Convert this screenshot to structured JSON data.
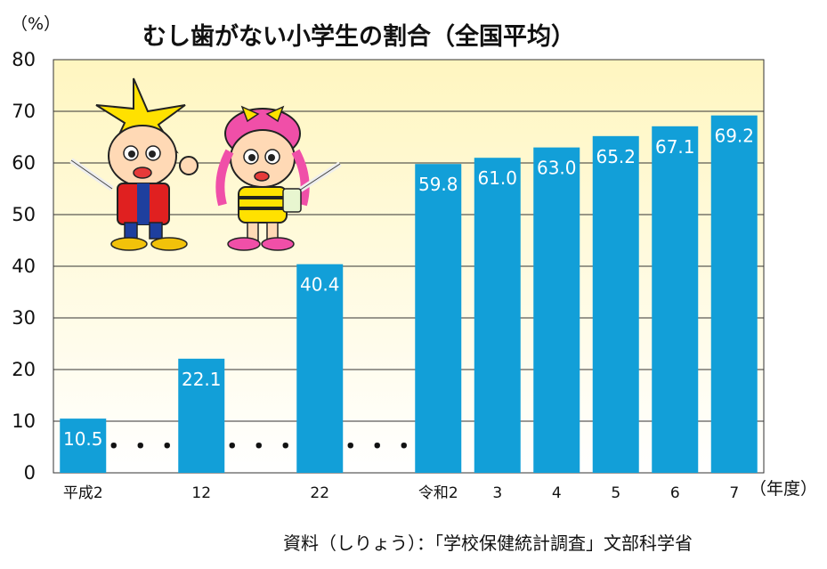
{
  "chart_data": {
    "type": "bar",
    "title": "むし歯がない小学生の割合（全国平均）",
    "ylabel": "（%）",
    "xlabel": "（年度）",
    "ylim": [
      0,
      80
    ],
    "yticks": [
      0,
      10,
      20,
      30,
      40,
      50,
      60,
      70,
      80
    ],
    "categories": [
      "平成2",
      "12",
      "22",
      "令和2",
      "3",
      "4",
      "5",
      "6",
      "7"
    ],
    "values": [
      10.5,
      22.1,
      40.4,
      59.8,
      61.0,
      63.0,
      65.2,
      67.1,
      69.2
    ],
    "value_labels": [
      "10.5",
      "22.1",
      "40.4",
      "59.8",
      "61.0",
      "63.0",
      "65.2",
      "67.1",
      "69.2"
    ],
    "gap_marker": "・・・",
    "source": "資料（しりょう）：「学校保健統計調査」文部科学省",
    "grid": true,
    "colors": {
      "bar": "#129fd8",
      "plot_background": "#fffbd0",
      "gridline": "#333333"
    }
  }
}
